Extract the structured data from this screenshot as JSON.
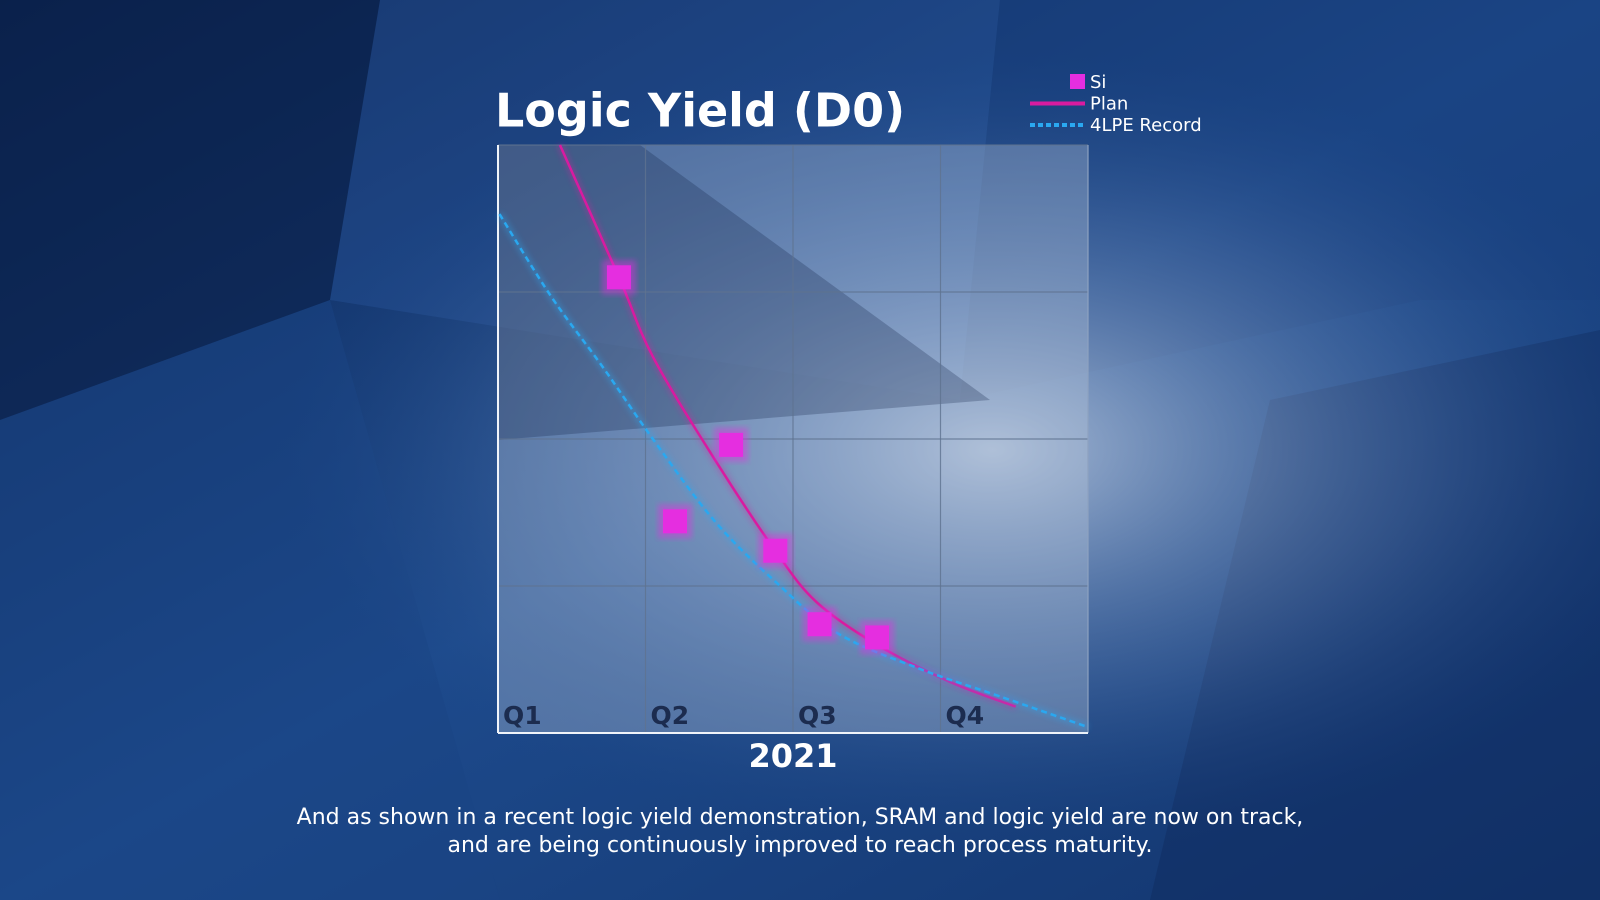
{
  "chart_data": {
    "type": "line",
    "title": "Logic Yield (D0)",
    "x_label": "2021",
    "xlim": [
      0,
      4
    ],
    "xticks": [
      {
        "value": 0,
        "label": "Q1"
      },
      {
        "value": 1,
        "label": "Q2"
      },
      {
        "value": 2,
        "label": "Q3"
      },
      {
        "value": 3,
        "label": "Q4"
      }
    ],
    "ylim": [
      0,
      4
    ],
    "yticks": [
      0,
      1,
      2,
      3,
      4
    ],
    "grid": true,
    "legend": "top-right",
    "series": [
      {
        "name": "Si",
        "color": "#e52ee0",
        "style": "markers",
        "x": [
          0.82,
          1.2,
          1.58,
          1.88,
          2.18,
          2.57
        ],
        "values": [
          3.1,
          1.44,
          1.96,
          1.24,
          0.74,
          0.65
        ]
      },
      {
        "name": "Plan",
        "color": "#d81ba0",
        "style": "solid",
        "x": [
          0.42,
          0.82,
          1.05,
          1.47,
          1.88,
          2.16,
          2.57,
          3.06,
          3.51
        ],
        "values": [
          4.0,
          3.1,
          2.56,
          1.86,
          1.24,
          0.89,
          0.6,
          0.35,
          0.18
        ]
      },
      {
        "name": "4LPE Record",
        "color": "#2aa8f0",
        "style": "dashed",
        "x": [
          0.01,
          0.36,
          0.71,
          1.05,
          1.47,
          1.88,
          2.3,
          2.85,
          3.4,
          4.0
        ],
        "values": [
          3.53,
          2.97,
          2.49,
          2.0,
          1.44,
          1.03,
          0.68,
          0.44,
          0.25,
          0.04
        ]
      }
    ]
  },
  "caption": [
    "And as shown in a recent logic yield demonstration, SRAM and logic yield are now on track,",
    "and are being continuously improved to reach process maturity."
  ]
}
